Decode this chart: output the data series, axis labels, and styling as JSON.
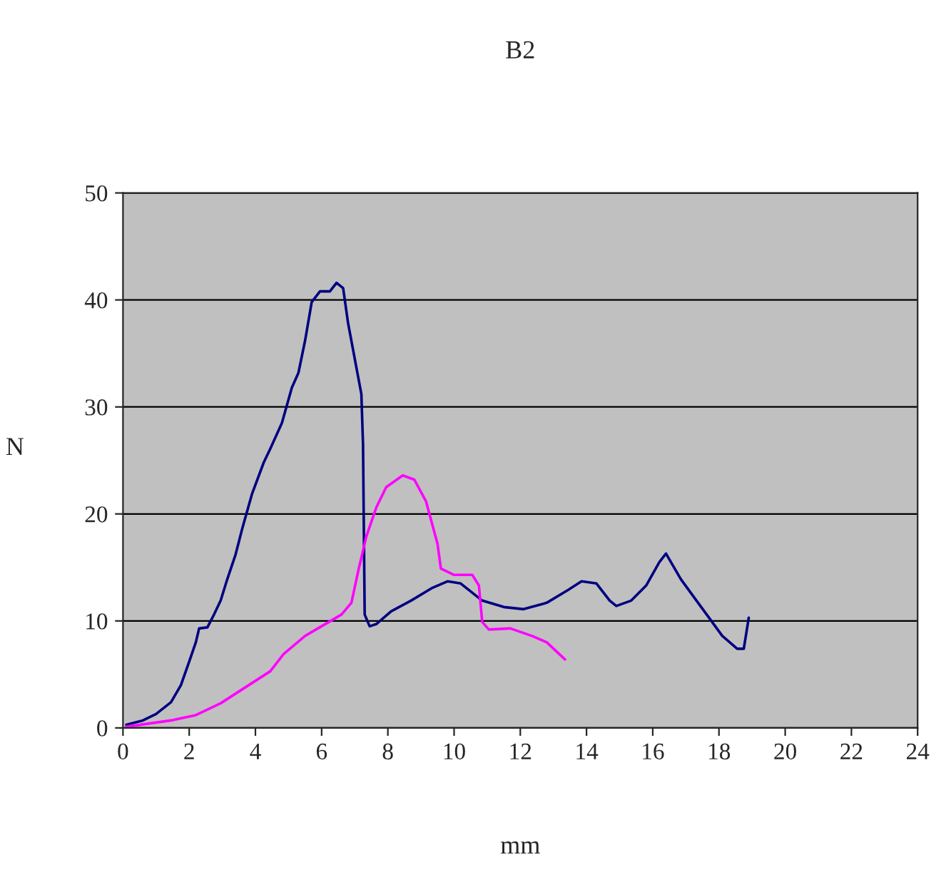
{
  "chart_data": {
    "type": "line",
    "title": "B2",
    "xlabel": "mm",
    "ylabel": "N",
    "xlim": [
      0,
      24
    ],
    "xticks": [
      0,
      2,
      4,
      6,
      8,
      10,
      12,
      14,
      16,
      18,
      20,
      22,
      24
    ],
    "ylim": [
      0,
      50
    ],
    "yticks": [
      0,
      10,
      20,
      30,
      40,
      50
    ],
    "grid": "y",
    "legend": false,
    "marker": "none",
    "line_style": "solid",
    "series": [
      {
        "color": "#000080",
        "x": [
          0.1,
          0.6,
          1.0,
          1.45,
          1.75,
          2.0,
          2.2,
          2.3,
          2.55,
          2.75,
          2.95,
          3.15,
          3.4,
          3.6,
          3.9,
          4.25,
          4.45,
          4.8,
          5.1,
          5.3,
          5.5,
          5.7,
          5.95,
          6.25,
          6.45,
          6.65,
          6.8,
          7.0,
          7.2,
          7.25,
          7.3,
          7.45,
          7.65,
          8.1,
          8.7,
          9.35,
          9.8,
          10.2,
          10.85,
          11.5,
          12.1,
          12.8,
          13.45,
          13.85,
          14.3,
          14.7,
          14.9,
          15.35,
          15.8,
          16.2,
          16.4,
          16.85,
          17.25,
          17.7,
          18.1,
          18.55,
          18.75,
          18.9
        ],
        "values": [
          0.3,
          0.7,
          1.3,
          2.4,
          4.0,
          6.2,
          8.0,
          9.3,
          9.4,
          10.6,
          11.9,
          13.9,
          16.2,
          18.6,
          21.9,
          24.8,
          26.1,
          28.5,
          31.8,
          33.2,
          36.2,
          39.8,
          40.8,
          40.8,
          41.6,
          41.1,
          37.8,
          34.5,
          31.2,
          26.5,
          10.6,
          9.5,
          9.7,
          10.9,
          11.9,
          13.1,
          13.7,
          13.5,
          11.9,
          11.3,
          11.1,
          11.7,
          12.9,
          13.7,
          13.5,
          11.9,
          11.4,
          11.9,
          13.3,
          15.5,
          16.3,
          13.9,
          12.2,
          10.3,
          8.6,
          7.4,
          7.4,
          10.3
        ]
      },
      {
        "color": "#ff00ff",
        "x": [
          0.1,
          1.45,
          2.2,
          2.95,
          3.8,
          4.45,
          4.85,
          5.5,
          6.6,
          6.9,
          7.1,
          7.35,
          7.65,
          7.95,
          8.45,
          8.8,
          9.15,
          9.5,
          9.6,
          10.0,
          10.55,
          10.75,
          10.85,
          11.05,
          11.7,
          12.35,
          12.8,
          13.35
        ],
        "values": [
          0.1,
          0.7,
          1.2,
          2.3,
          4.0,
          5.3,
          6.9,
          8.6,
          10.6,
          11.7,
          14.6,
          17.9,
          20.6,
          22.5,
          23.6,
          23.2,
          21.2,
          17.2,
          14.9,
          14.3,
          14.3,
          13.3,
          9.9,
          9.2,
          9.3,
          8.6,
          8.0,
          6.4
        ]
      }
    ]
  }
}
